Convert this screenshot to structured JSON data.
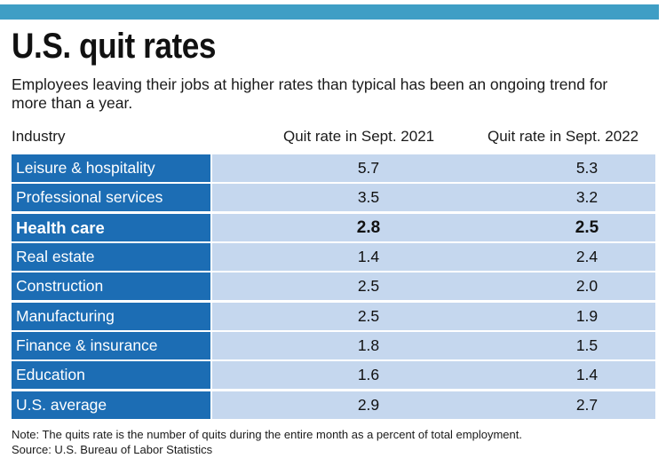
{
  "title": "U.S. quit rates",
  "subtitle": "Employees leaving their jobs at higher rates than typical has been an ongoing trend for more than a year.",
  "colors": {
    "top_bar": "#3f9ec5",
    "industry_cell": "#1c6db4",
    "value_cell": "#c5d7ee"
  },
  "chart_data": {
    "type": "table",
    "columns": [
      "Industry",
      "Quit rate in Sept. 2021",
      "Quit rate in Sept. 2022"
    ],
    "rows": [
      {
        "industry": "Leisure & hospitality",
        "sept_2021": "5.7",
        "sept_2022": "5.3",
        "bold": false
      },
      {
        "industry": "Professional services",
        "sept_2021": "3.5",
        "sept_2022": "3.2",
        "bold": false
      },
      {
        "industry": "Health care",
        "sept_2021": "2.8",
        "sept_2022": "2.5",
        "bold": true
      },
      {
        "industry": "Real estate",
        "sept_2021": "1.4",
        "sept_2022": "2.4",
        "bold": false
      },
      {
        "industry": "Construction",
        "sept_2021": "2.5",
        "sept_2022": "2.0",
        "bold": false
      },
      {
        "industry": "Manufacturing",
        "sept_2021": "2.5",
        "sept_2022": "1.9",
        "bold": false
      },
      {
        "industry": "Finance & insurance",
        "sept_2021": "1.8",
        "sept_2022": "1.5",
        "bold": false
      },
      {
        "industry": "Education",
        "sept_2021": "1.6",
        "sept_2022": "1.4",
        "bold": false
      },
      {
        "industry": "U.S. average",
        "sept_2021": "2.9",
        "sept_2022": "2.7",
        "bold": false
      }
    ],
    "notes": [
      "Note: The quits rate is the number of quits during the entire month as a percent of total employment.",
      "Source: U.S. Bureau of Labor Statistics"
    ]
  }
}
